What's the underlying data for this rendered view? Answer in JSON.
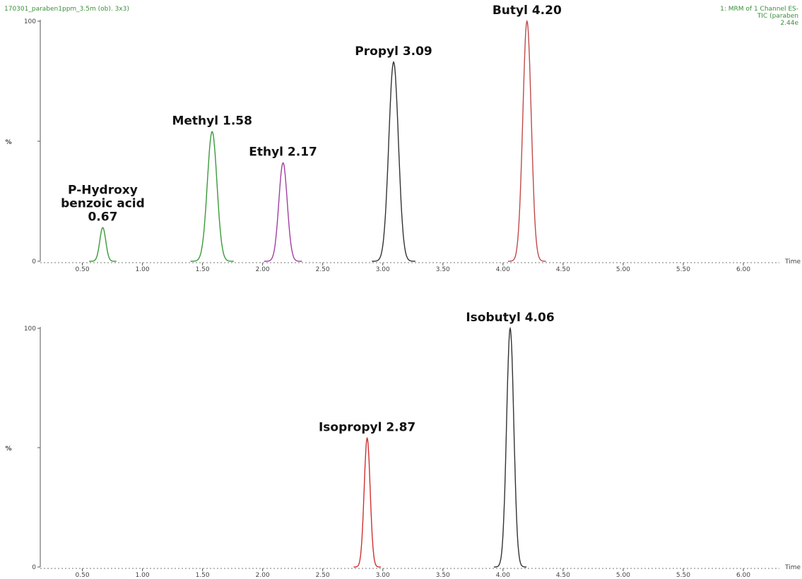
{
  "header": {
    "left": "170301_paraben1ppm_3.5m (ob). 3x3)",
    "right_lines": [
      "1: MRM of 1 Channel ES-",
      "TIC (paraben",
      "2.44e"
    ]
  },
  "chart_data": [
    {
      "type": "line",
      "title": "",
      "xlabel": "Time",
      "ylabel": "%",
      "xlim": [
        0.15,
        6.3
      ],
      "ylim": [
        0,
        100
      ],
      "x_ticks": [
        "0.50",
        "1.00",
        "1.50",
        "2.00",
        "2.50",
        "3.00",
        "3.50",
        "4.00",
        "4.50",
        "5.00",
        "5.50",
        "6.00"
      ],
      "y_ticks": [
        "0",
        "100"
      ],
      "grid": false,
      "series": [
        {
          "peak_time": 0.67,
          "height": 14,
          "width": 0.025,
          "color": "#3a9a3a",
          "label": [
            "P-Hydroxy",
            "benzoic acid",
            "0.67"
          ]
        },
        {
          "peak_time": 1.58,
          "height": 54,
          "width": 0.04,
          "color": "#3a9a3a",
          "label": [
            "Methyl 1.58"
          ]
        },
        {
          "peak_time": 2.17,
          "height": 41,
          "width": 0.035,
          "color": "#a040a0",
          "label": [
            "Ethyl 2.17"
          ]
        },
        {
          "peak_time": 3.09,
          "height": 83,
          "width": 0.04,
          "color": "#333333",
          "label": [
            "Propyl 3.09"
          ]
        },
        {
          "peak_time": 4.2,
          "height": 100,
          "width": 0.035,
          "color": "#c04a4a",
          "label": [
            "Butyl 4.20"
          ]
        }
      ]
    },
    {
      "type": "line",
      "title": "",
      "xlabel": "Time",
      "ylabel": "%",
      "xlim": [
        0.15,
        6.3
      ],
      "ylim": [
        0,
        100
      ],
      "x_ticks": [
        "0.50",
        "1.00",
        "1.50",
        "2.00",
        "2.50",
        "3.00",
        "3.50",
        "4.00",
        "4.50",
        "5.00",
        "5.50",
        "6.00"
      ],
      "y_ticks": [
        "0",
        "100"
      ],
      "grid": false,
      "series": [
        {
          "peak_time": 2.87,
          "height": 54,
          "width": 0.025,
          "color": "#d03030",
          "label": [
            "Isopropyl 2.87"
          ]
        },
        {
          "peak_time": 4.06,
          "height": 100,
          "width": 0.03,
          "color": "#333333",
          "label": [
            "Isobutyl 4.06"
          ]
        }
      ]
    }
  ]
}
